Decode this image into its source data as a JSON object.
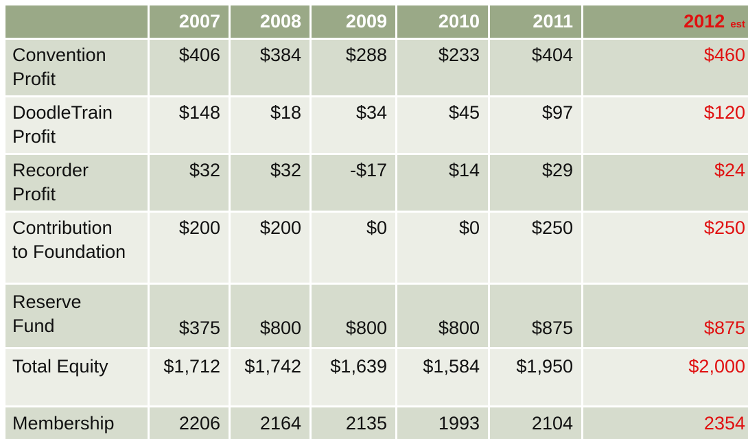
{
  "header": {
    "years": [
      "2007",
      "2008",
      "2009",
      "2010",
      "2011"
    ],
    "est_year": "2012",
    "est_suffix": "est"
  },
  "rows": [
    {
      "label_line1": "Convention",
      "label_line2": "Profit",
      "values": [
        "$406",
        "$384",
        "$288",
        "$233",
        "$404"
      ],
      "est": "$460"
    },
    {
      "label_line1": "DoodleTrain",
      "label_line2": "Profit",
      "values": [
        "$148",
        "$18",
        "$34",
        "$45",
        "$97"
      ],
      "est": "$120"
    },
    {
      "label_line1": "Recorder",
      "label_line2": "Profit",
      "values": [
        "$32",
        "$32",
        "-$17",
        "$14",
        "$29"
      ],
      "est": "$24"
    },
    {
      "label_line1": "Contribution",
      "label_line2": "to Foundation",
      "values": [
        "$200",
        "$200",
        "$0",
        "$0",
        "$250"
      ],
      "est": "$250"
    },
    {
      "label_line1": "Reserve",
      "label_line2": "Fund",
      "values": [
        "$375",
        "$800",
        "$800",
        "$800",
        "$875"
      ],
      "est": "$875"
    },
    {
      "label_line1": "Total Equity",
      "label_line2": "",
      "values": [
        "$1,712",
        "$1,742",
        "$1,639",
        "$1,584",
        "$1,950"
      ],
      "est": "$2,000"
    },
    {
      "label_line1": "Membership",
      "label_line2": "",
      "values": [
        "2206",
        "2164",
        "2135",
        "1993",
        "2104"
      ],
      "est": "2354"
    }
  ],
  "colors": {
    "header_bg": "#9aa987",
    "row_dark": "#d6dccd",
    "row_light": "#eceee6",
    "estimate_red": "#e01010"
  }
}
